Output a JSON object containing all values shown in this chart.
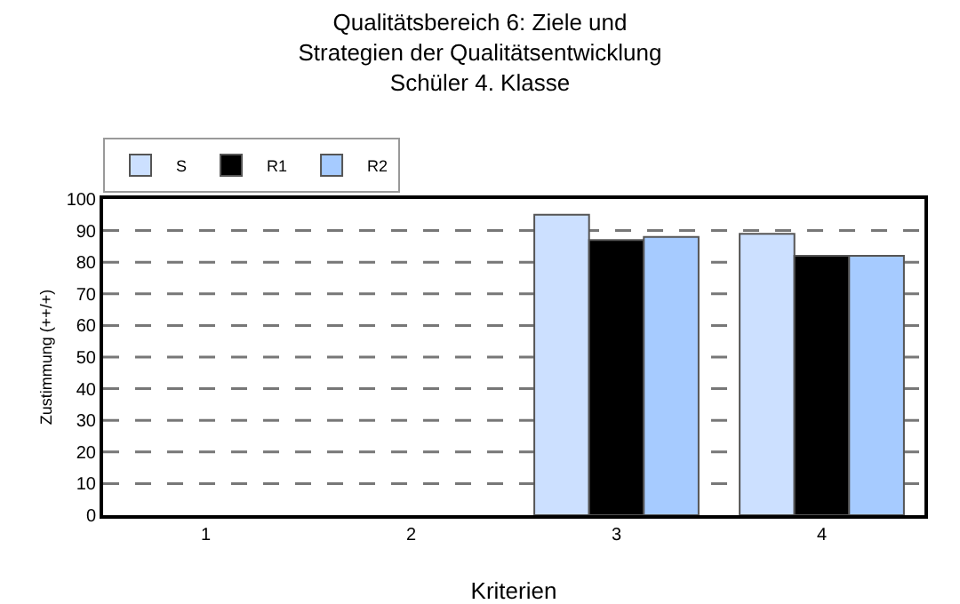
{
  "chart_data": {
    "type": "bar",
    "title": "Qualitätsbereich 6: Ziele und\nStrategien der Qualitätsentwicklung\nSchüler 4. Klasse",
    "xlabel": "Kriterien",
    "ylabel": "Zustimmung (++/+)",
    "categories": [
      "1",
      "2",
      "3",
      "4"
    ],
    "series": [
      {
        "name": "S",
        "color": "#cce0ff",
        "values": [
          null,
          null,
          95,
          89
        ]
      },
      {
        "name": "R1",
        "color": "#000000",
        "values": [
          null,
          null,
          87,
          82
        ]
      },
      {
        "name": "R2",
        "color": "#a6cbff",
        "values": [
          null,
          null,
          88,
          82
        ]
      }
    ],
    "ylim": [
      0,
      100
    ],
    "yticks": [
      0,
      10,
      20,
      30,
      40,
      50,
      60,
      70,
      80,
      90,
      100
    ],
    "grid": "y",
    "line_style": "dashed",
    "legend": "top left"
  }
}
